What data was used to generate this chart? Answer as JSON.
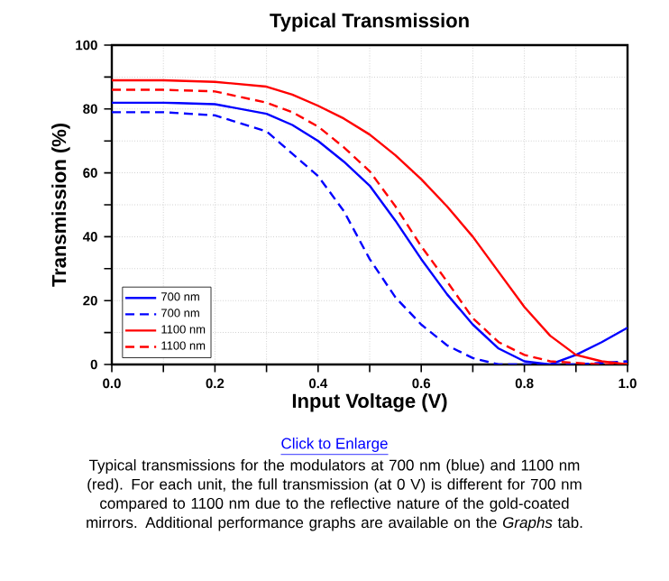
{
  "chart_data": {
    "type": "line",
    "title": "Typical Transmission",
    "xlabel": "Input Voltage (V)",
    "ylabel": "Transmission (%)",
    "x": [
      0,
      0.1,
      0.2,
      0.3,
      0.35,
      0.4,
      0.45,
      0.5,
      0.55,
      0.6,
      0.65,
      0.7,
      0.75,
      0.8,
      0.85,
      0.9,
      0.95,
      1.0
    ],
    "series": [
      {
        "name": "700 nm",
        "color": "#0000ff",
        "line_style": "solid",
        "values": [
          82,
          82,
          81.5,
          78.5,
          75,
          70,
          63.5,
          56,
          45,
          33,
          22,
          12.5,
          5,
          1,
          0,
          3,
          7,
          11.5
        ]
      },
      {
        "name": "700 nm",
        "color": "#0000ff",
        "line_style": "dashed",
        "values": [
          79,
          79,
          78,
          73,
          66,
          59,
          48,
          33,
          21,
          12.5,
          6,
          2,
          0,
          0,
          0,
          0,
          0.5,
          1
        ]
      },
      {
        "name": "1100 nm",
        "color": "#ff0000",
        "line_style": "solid",
        "values": [
          89,
          89,
          88.5,
          87,
          84.5,
          81,
          77,
          72,
          65.5,
          58,
          49.5,
          40,
          29,
          18,
          9,
          3,
          1,
          0
        ]
      },
      {
        "name": "1100 nm",
        "color": "#ff0000",
        "line_style": "dashed",
        "values": [
          86,
          86,
          85.5,
          82,
          79,
          74.5,
          68,
          60.5,
          49.5,
          37,
          26,
          14.5,
          7,
          3,
          1,
          0.5,
          0,
          0
        ]
      }
    ],
    "xlim": [
      0,
      1.0
    ],
    "ylim": [
      0,
      100
    ],
    "xticks": [
      {
        "value": 0,
        "label": "0.0"
      },
      {
        "value": 0.1,
        "label": null
      },
      0.2,
      {
        "value": 0.3,
        "label": null
      },
      0.4,
      {
        "value": 0.5,
        "label": null
      },
      0.6,
      {
        "value": 0.7,
        "label": null
      },
      0.8,
      {
        "value": 0.9,
        "label": null
      },
      {
        "value": 1,
        "label": "1.0"
      }
    ],
    "yticks": [
      0,
      {
        "value": 10,
        "label": null
      },
      20,
      {
        "value": 30,
        "label": null
      },
      40,
      {
        "value": 50,
        "label": null
      },
      60,
      {
        "value": 70,
        "label": null
      },
      80,
      {
        "value": 90,
        "label": null
      },
      100
    ],
    "grid": true,
    "legend": "bottom left",
    "marker": "none",
    "annotations": [
      "Click to Enlarge",
      "Typical transmissions for the modulators at 700 nm (blue) and 1100 nm (red). For each unit, the full transmission (at 0 V) is different for 700 nm compared to 1100 nm due to the reflective nature of the gold-coated mirrors. Additional performance graphs are available on the *Graphs* tab."
    ]
  }
}
